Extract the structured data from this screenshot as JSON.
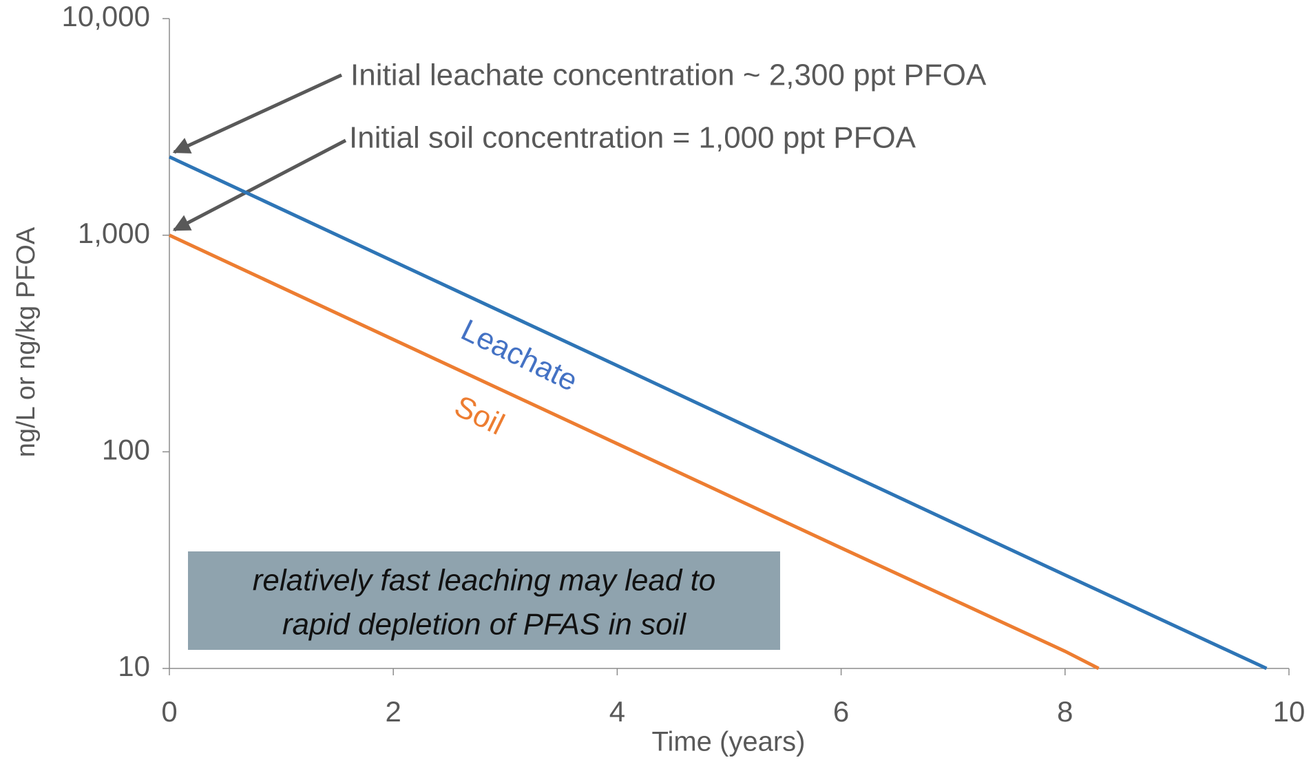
{
  "chart_data": {
    "type": "line",
    "xlabel": "Time (years)",
    "ylabel": "ng/L or ng/kg PFOA",
    "xlim": [
      0,
      10
    ],
    "xticks": [
      0,
      2,
      4,
      6,
      8,
      10
    ],
    "ylim": [
      10,
      10000
    ],
    "yscale": "log",
    "yticks": [
      {
        "value": 10,
        "label": "10"
      },
      {
        "value": 100,
        "label": "100"
      },
      {
        "value": 1000,
        "label": "1,000"
      },
      {
        "value": 10000,
        "label": "10,000"
      }
    ],
    "series": [
      {
        "name": "Leachate",
        "color": "#2e75b6",
        "x": [
          0,
          2,
          4,
          6,
          8,
          9.8
        ],
        "values": [
          2300,
          758,
          250,
          82,
          27,
          10
        ]
      },
      {
        "name": "Soil",
        "color": "#ed7d31",
        "x": [
          0,
          2,
          4,
          6,
          8,
          8.3
        ],
        "values": [
          1000,
          330,
          109,
          36,
          12,
          10
        ]
      }
    ],
    "annotations": [
      "Initial leachate concentration ~ 2,300 ppt PFOA",
      "Initial soil concentration = 1,000 ppt PFOA"
    ],
    "note": [
      "relatively fast leaching may lead to",
      "rapid depletion of PFAS in soil"
    ]
  }
}
